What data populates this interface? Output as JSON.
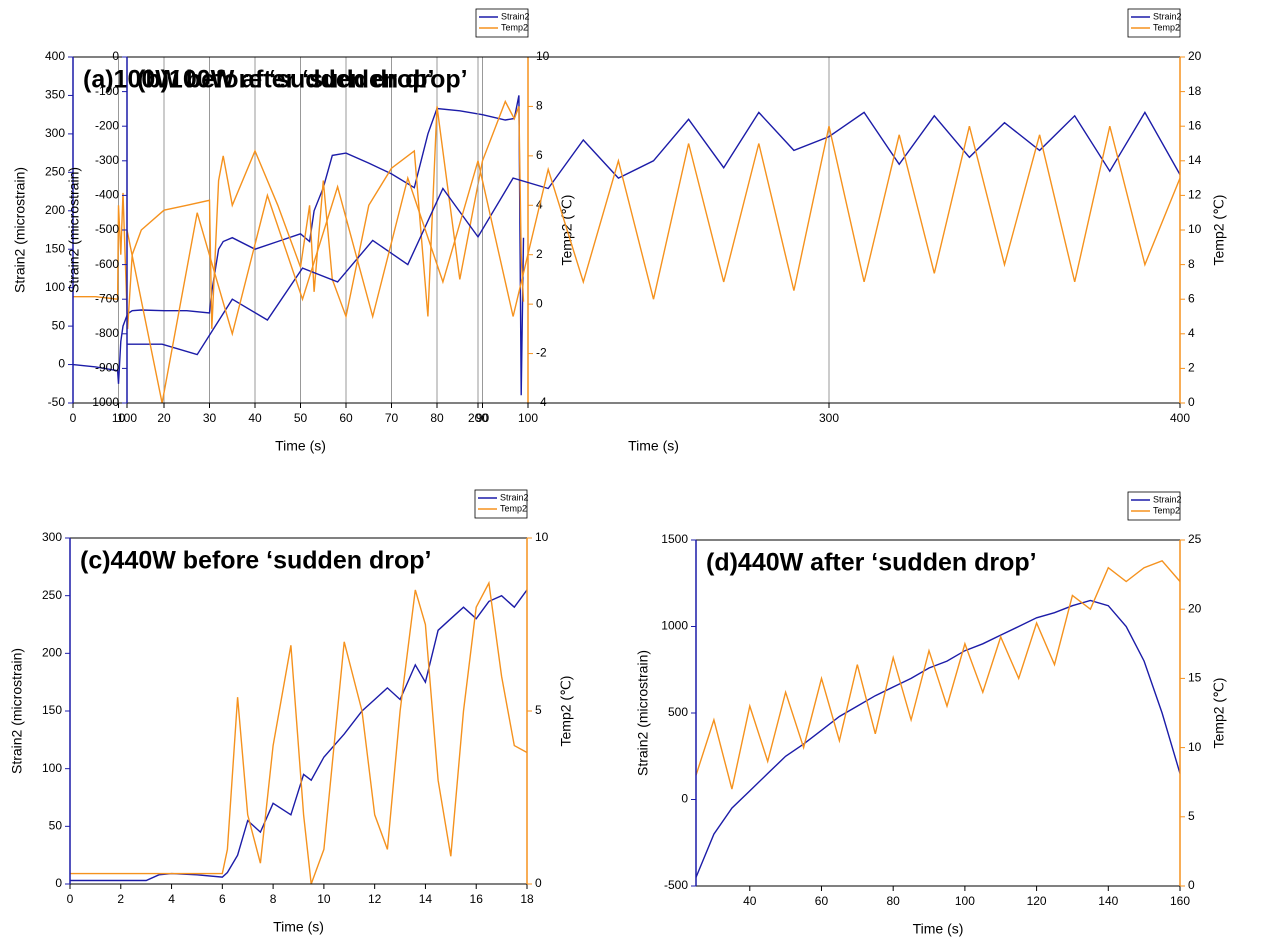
{
  "chart_data": [
    {
      "type": "line",
      "title": "(a)100W before ‘sudden drop’",
      "xlabel": "Time (s)",
      "ylabel": "Strain2 (microstrain)",
      "y2label": "Temp2 (℃)",
      "x": [
        0,
        5,
        9.8,
        10,
        10.5,
        11,
        12,
        13,
        15,
        20,
        25,
        30,
        30.5,
        32,
        33,
        35,
        40,
        45,
        50,
        52,
        53,
        55,
        57,
        60,
        65,
        70,
        75,
        78,
        80,
        85,
        90,
        95,
        97,
        98,
        98.5,
        99
      ],
      "series": [
        {
          "name": "Strain2",
          "color": "#1c1ca8",
          "values": [
            0,
            -3,
            -8,
            -25,
            30,
            50,
            66,
            70,
            71,
            70,
            70,
            67,
            95,
            150,
            160,
            165,
            150,
            160,
            170,
            160,
            200,
            230,
            272,
            275,
            262,
            248,
            230,
            300,
            333,
            330,
            325,
            318,
            320,
            350,
            -40,
            165
          ]
        },
        {
          "name": "Temp2",
          "color": "#f5921e",
          "axis": "y2",
          "values": [
            0.3,
            0.3,
            0.2,
            4,
            2,
            4.5,
            -1,
            2,
            3,
            3.8,
            4,
            4.2,
            -1,
            5,
            6,
            4,
            6.2,
            4,
            1.5,
            4,
            0.5,
            5,
            1,
            -0.5,
            4,
            5.5,
            6.2,
            -0.5,
            8,
            1,
            5.8,
            8.2,
            7.5,
            8,
            2,
            0.1
          ]
        }
      ],
      "xlim": [
        0,
        100
      ],
      "xticks": [
        0,
        10,
        20,
        30,
        40,
        50,
        60,
        70,
        80,
        90,
        100
      ],
      "ylim": [
        -50,
        400
      ],
      "yticks": [
        -50,
        0,
        50,
        100,
        150,
        200,
        250,
        300,
        350,
        400
      ],
      "y2lim": [
        -4,
        10
      ],
      "y2ticks": [
        -4,
        -2,
        0,
        2,
        4,
        6,
        8,
        10
      ],
      "xgrid": true,
      "legend": "upper right"
    },
    {
      "type": "line",
      "title": "(b)100W after ‘sudden drop’",
      "xlabel": "Time (s)",
      "ylabel": "Strain2 (microstrain)",
      "y2label": "Temp2 (℃)",
      "x": [
        100,
        110,
        120,
        130,
        140,
        150,
        160,
        170,
        180,
        190,
        200,
        210,
        220,
        230,
        240,
        250,
        260,
        270,
        280,
        290,
        300,
        310,
        320,
        330,
        340,
        350,
        360,
        370,
        380,
        390,
        400
      ],
      "series": [
        {
          "name": "Strain2",
          "color": "#1c1ca8",
          "values": [
            -830,
            -830,
            -860,
            -700,
            -760,
            -610,
            -650,
            -530,
            -600,
            -380,
            -520,
            -350,
            -380,
            -240,
            -350,
            -300,
            -180,
            -320,
            -160,
            -270,
            -230,
            -160,
            -310,
            -170,
            -290,
            -190,
            -270,
            -170,
            -330,
            -160,
            -340
          ]
        },
        {
          "name": "Temp2",
          "color": "#f5921e",
          "axis": "y2",
          "values": [
            10,
            0,
            11,
            4,
            12,
            6,
            12.5,
            5,
            13,
            7,
            14,
            5,
            13.5,
            7,
            14,
            6,
            15,
            7,
            15,
            6.5,
            16,
            7,
            15.5,
            7.5,
            16,
            8,
            15.5,
            7,
            16,
            8,
            13
          ]
        }
      ],
      "xlim": [
        100,
        400
      ],
      "xticks": [
        100,
        200,
        300,
        400
      ],
      "ylim": [
        -1000,
        0
      ],
      "yticks": [
        -1000,
        -900,
        -800,
        -700,
        -600,
        -500,
        -400,
        -300,
        -200,
        -100,
        0
      ],
      "y2lim": [
        0,
        20
      ],
      "y2ticks": [
        0,
        2,
        4,
        6,
        8,
        10,
        12,
        14,
        16,
        18,
        20
      ],
      "xgrid": true,
      "legend": "upper right"
    },
    {
      "type": "line",
      "title": "(c)440W before ‘sudden drop’",
      "xlabel": "Time (s)",
      "ylabel": "Strain2 (microstrain)",
      "y2label": "Temp2 (℃)",
      "x": [
        0,
        1,
        2,
        3,
        3.5,
        4,
        5,
        6,
        6.2,
        6.6,
        7,
        7.5,
        8,
        8.7,
        9.2,
        9.5,
        10,
        10.8,
        11.5,
        12,
        12.5,
        13,
        13.6,
        14,
        14.5,
        15,
        15.5,
        16,
        16.5,
        17,
        17.5,
        18
      ],
      "series": [
        {
          "name": "Strain2",
          "color": "#1c1ca8",
          "values": [
            3,
            3,
            3,
            3,
            8,
            9,
            8,
            6,
            10,
            25,
            55,
            45,
            70,
            60,
            95,
            90,
            110,
            130,
            150,
            160,
            170,
            160,
            190,
            175,
            220,
            230,
            240,
            230,
            245,
            250,
            240,
            255
          ]
        },
        {
          "name": "Temp2",
          "color": "#f5921e",
          "axis": "y2",
          "values": [
            0.3,
            0.3,
            0.3,
            0.3,
            0.3,
            0.3,
            0.3,
            0.3,
            1,
            5.4,
            2,
            0.6,
            4,
            6.9,
            2,
            0,
            1,
            7,
            5,
            2,
            1,
            5,
            8.5,
            7.5,
            3,
            0.8,
            5,
            8,
            8.7,
            6,
            4,
            3.8
          ]
        }
      ],
      "xlim": [
        0,
        18
      ],
      "xticks": [
        0,
        2,
        4,
        6,
        8,
        10,
        12,
        14,
        16,
        18
      ],
      "ylim": [
        0,
        300
      ],
      "yticks": [
        0,
        50,
        100,
        150,
        200,
        250,
        300
      ],
      "y2lim": [
        0,
        10
      ],
      "y2ticks": [
        0,
        5,
        10
      ],
      "xgrid": false,
      "legend": "upper right"
    },
    {
      "type": "line",
      "title": "(d)440W after ‘sudden drop’",
      "xlabel": "Time (s)",
      "ylabel": "Strain2 (microstrain)",
      "y2label": "Temp2 (℃)",
      "x": [
        25,
        30,
        35,
        40,
        45,
        50,
        55,
        60,
        65,
        70,
        75,
        80,
        85,
        90,
        95,
        100,
        105,
        110,
        115,
        120,
        125,
        130,
        135,
        140,
        145,
        150,
        155,
        160
      ],
      "series": [
        {
          "name": "Strain2",
          "color": "#1c1ca8",
          "values": [
            -450,
            -200,
            -50,
            50,
            150,
            250,
            320,
            400,
            480,
            540,
            600,
            650,
            700,
            760,
            800,
            860,
            900,
            950,
            1000,
            1050,
            1080,
            1120,
            1150,
            1120,
            1000,
            800,
            500,
            150
          ]
        },
        {
          "name": "Temp2",
          "color": "#f5921e",
          "axis": "y2",
          "values": [
            8,
            12,
            7,
            13,
            9,
            14,
            10,
            15,
            10.5,
            16,
            11,
            16.5,
            12,
            17,
            13,
            17.5,
            14,
            18,
            15,
            19,
            16,
            21,
            20,
            23,
            22,
            23,
            23.5,
            22
          ]
        }
      ],
      "xlim": [
        25,
        160
      ],
      "xticks": [
        40,
        60,
        80,
        100,
        120,
        140,
        160
      ],
      "ylim": [
        -500,
        1500
      ],
      "yticks": [
        -500,
        0,
        500,
        1000,
        1500
      ],
      "y2lim": [
        0,
        25
      ],
      "y2ticks": [
        0,
        5,
        10,
        15,
        20,
        25
      ],
      "xgrid": false,
      "legend": "upper right"
    }
  ]
}
